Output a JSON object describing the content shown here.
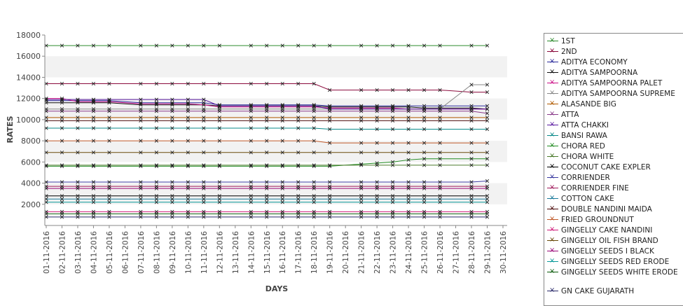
{
  "chart_data": {
    "type": "line",
    "xlabel": "DAYS",
    "ylabel": "RATES",
    "ylim": [
      0,
      18000
    ],
    "yticks": [
      2000,
      4000,
      6000,
      8000,
      10000,
      12000,
      14000,
      16000,
      18000
    ],
    "grid": "alternating horizontal bands",
    "legend_position": "right",
    "x": [
      "01-11-2016",
      "02-11-2016",
      "03-11-2016",
      "04-11-2016",
      "05-11-2016",
      "06-11-2016",
      "07-11-2016",
      "08-11-2016",
      "09-11-2016",
      "10-11-2016",
      "11-11-2016",
      "12-11-2016",
      "13-11-2016",
      "14-11-2016",
      "15-11-2016",
      "16-11-2016",
      "17-11-2016",
      "18-11-2016",
      "19-11-2016",
      "20-11-2016",
      "21-11-2016",
      "22-11-2016",
      "23-11-2016",
      "24-11-2016",
      "25-11-2016",
      "26-11-2016",
      "27-11-2016",
      "28-11-2016",
      "29-11-2016",
      "30-11-2016"
    ],
    "series": [
      {
        "name": "1ST",
        "color": "#2e8b2e",
        "values": [
          17000,
          17000,
          17000,
          17000,
          17000,
          null,
          17000,
          17000,
          17000,
          17000,
          17000,
          17000,
          null,
          17000,
          17000,
          17000,
          17000,
          17000,
          17000,
          null,
          17000,
          17000,
          17000,
          17000,
          17000,
          17000,
          null,
          17000,
          17000,
          null
        ]
      },
      {
        "name": "2ND",
        "color": "#8b0a3c",
        "values": [
          13400,
          13400,
          13400,
          13400,
          13400,
          null,
          13400,
          13400,
          13400,
          13400,
          13400,
          13400,
          null,
          13400,
          13400,
          13400,
          13400,
          13400,
          12800,
          null,
          12800,
          12800,
          12800,
          12800,
          12800,
          12800,
          null,
          12600,
          12600,
          null
        ]
      },
      {
        "name": "ADITYA ECONOMY",
        "color": "#2a2a9a",
        "values": [
          11800,
          11800,
          11800,
          11800,
          11800,
          null,
          11600,
          11600,
          11600,
          11600,
          11600,
          11400,
          null,
          11400,
          11400,
          11400,
          11400,
          11400,
          11300,
          null,
          11300,
          11300,
          11300,
          11300,
          11300,
          11300,
          null,
          11300,
          11300,
          null
        ]
      },
      {
        "name": "ADITYA SAMPOORNA",
        "color": "#111111",
        "values": [
          11600,
          11600,
          11600,
          11600,
          11600,
          null,
          11400,
          11400,
          11400,
          11400,
          11400,
          11300,
          null,
          11300,
          11300,
          11300,
          11300,
          11300,
          11200,
          null,
          11200,
          11200,
          11200,
          11200,
          11100,
          11100,
          null,
          11100,
          11000,
          null
        ]
      },
      {
        "name": "ADITYA SAMPOORNA PALET",
        "color": "#cc1188",
        "values": [
          12000,
          12000,
          11700,
          11700,
          11700,
          null,
          11500,
          11500,
          11500,
          11500,
          11400,
          11200,
          null,
          11200,
          11200,
          11200,
          11200,
          11200,
          11100,
          null,
          11100,
          11100,
          11100,
          11000,
          11000,
          11000,
          null,
          11000,
          11000,
          null
        ]
      },
      {
        "name": "ADITYA SAMPOORNA SUPREME",
        "color": "#888888",
        "values": [
          11000,
          11000,
          11000,
          11000,
          11000,
          null,
          11000,
          11000,
          11000,
          11000,
          11000,
          11000,
          null,
          11000,
          11000,
          11000,
          11000,
          11000,
          11000,
          null,
          11000,
          11000,
          11000,
          11000,
          11000,
          11000,
          null,
          13300,
          13300,
          null
        ]
      },
      {
        "name": "ALASANDE BIG",
        "color": "#b05a00",
        "values": [
          10200,
          10200,
          10200,
          10200,
          10200,
          null,
          10200,
          10200,
          10200,
          10200,
          10200,
          10200,
          null,
          10200,
          10200,
          10200,
          10200,
          10200,
          10200,
          null,
          10200,
          10200,
          10200,
          10200,
          10200,
          10200,
          null,
          10200,
          10200,
          null
        ]
      },
      {
        "name": "ATTA",
        "color": "#8a3a8a",
        "values": [
          10800,
          10800,
          10800,
          10800,
          10800,
          null,
          10800,
          10800,
          10800,
          10800,
          10800,
          10800,
          null,
          10800,
          10800,
          10800,
          10800,
          10800,
          10800,
          null,
          10800,
          10800,
          10800,
          10800,
          10800,
          10800,
          null,
          10800,
          10600,
          null
        ]
      },
      {
        "name": "ATTA CHAKKI",
        "color": "#5a1aa0",
        "values": [
          11900,
          11900,
          11900,
          11900,
          11900,
          null,
          11900,
          11900,
          11900,
          11900,
          11900,
          11300,
          null,
          11300,
          11300,
          11300,
          11300,
          11300,
          11000,
          null,
          11000,
          11000,
          11000,
          11000,
          11000,
          11000,
          null,
          11000,
          11000,
          null
        ]
      },
      {
        "name": "BANSI RAWA",
        "color": "#0a8a8a",
        "values": [
          9200,
          9200,
          9200,
          9200,
          9200,
          null,
          9200,
          9200,
          9200,
          9200,
          9200,
          9200,
          null,
          9200,
          9200,
          9200,
          9200,
          9200,
          9100,
          null,
          9100,
          9100,
          9100,
          9100,
          9100,
          9100,
          null,
          9100,
          9100,
          null
        ]
      },
      {
        "name": "CHORA RED",
        "color": "#228b22",
        "values": [
          5600,
          5600,
          5600,
          5600,
          5600,
          null,
          5600,
          5600,
          5600,
          5600,
          5600,
          5600,
          null,
          5600,
          5600,
          5600,
          5600,
          5600,
          5600,
          null,
          5800,
          5900,
          6000,
          6200,
          6300,
          6300,
          null,
          6300,
          6300,
          null
        ]
      },
      {
        "name": "CHORA WHITE",
        "color": "#4a7a2a",
        "values": [
          5700,
          5700,
          5700,
          5700,
          5700,
          null,
          5700,
          5700,
          5700,
          5700,
          5700,
          5700,
          null,
          5700,
          5700,
          5700,
          5700,
          5700,
          5700,
          null,
          5700,
          5700,
          5700,
          5700,
          5700,
          5700,
          null,
          5700,
          5700,
          null
        ]
      },
      {
        "name": "COCONUT CAKE EXPLER",
        "color": "#000000",
        "values": [
          2800,
          2800,
          2800,
          2800,
          2800,
          null,
          2800,
          2800,
          2800,
          2800,
          2800,
          2800,
          null,
          2800,
          2800,
          2800,
          2800,
          2800,
          2800,
          null,
          2800,
          2800,
          2800,
          2800,
          2800,
          2800,
          null,
          2800,
          2800,
          null
        ]
      },
      {
        "name": "CORRIENDER",
        "color": "#3a3aa0",
        "values": [
          4100,
          4100,
          4100,
          4100,
          4100,
          null,
          4100,
          4100,
          4100,
          4100,
          4100,
          4100,
          null,
          4100,
          4100,
          4100,
          4100,
          4100,
          4100,
          null,
          4100,
          4100,
          4100,
          4100,
          4100,
          4100,
          null,
          4100,
          4200,
          null
        ]
      },
      {
        "name": "CORRIENDER FINE",
        "color": "#a01a5a",
        "values": [
          3700,
          3700,
          3700,
          3700,
          3700,
          null,
          3700,
          3700,
          3700,
          3700,
          3700,
          3700,
          null,
          3700,
          3700,
          3700,
          3700,
          3700,
          3700,
          null,
          3700,
          3700,
          3700,
          3700,
          3700,
          3700,
          null,
          3700,
          3700,
          null
        ]
      },
      {
        "name": "COTTON CAKE",
        "color": "#1a7a9a",
        "values": [
          2500,
          2500,
          2500,
          2500,
          2500,
          null,
          2500,
          2500,
          2500,
          2500,
          2500,
          2500,
          null,
          2500,
          2500,
          2500,
          2500,
          2500,
          2500,
          null,
          2500,
          2500,
          2500,
          2500,
          2500,
          2500,
          null,
          2500,
          2500,
          null
        ]
      },
      {
        "name": "DOUBLE NANDINI MAIDA",
        "color": "#4a0a0a",
        "values": [
          9900,
          9900,
          9900,
          9900,
          9900,
          null,
          9900,
          9900,
          9900,
          9900,
          9900,
          9900,
          null,
          9900,
          9900,
          9900,
          9900,
          9900,
          9900,
          null,
          9900,
          9900,
          9900,
          9900,
          9900,
          9900,
          null,
          9900,
          9900,
          null
        ]
      },
      {
        "name": "FRIED GROUNDNUT",
        "color": "#c05a2a",
        "values": [
          8000,
          8000,
          8000,
          8000,
          8000,
          null,
          8000,
          8000,
          8000,
          8000,
          8000,
          8000,
          null,
          8000,
          8000,
          8000,
          8000,
          8000,
          7800,
          null,
          7800,
          7800,
          7800,
          7800,
          7800,
          7800,
          null,
          7800,
          7800,
          null
        ]
      },
      {
        "name": "GINGELLY CAKE NANDINI",
        "color": "#d01a7a",
        "values": [
          1300,
          1300,
          1300,
          1300,
          1300,
          null,
          1300,
          1300,
          1300,
          1300,
          1300,
          1300,
          null,
          1300,
          1300,
          1300,
          1300,
          1300,
          1300,
          null,
          1300,
          1300,
          1300,
          1300,
          1300,
          1300,
          null,
          1300,
          1300,
          null
        ]
      },
      {
        "name": "GINGELLY OIL FISH BRAND",
        "color": "#6a4a0a",
        "values": [
          6900,
          6900,
          6900,
          6900,
          6900,
          null,
          6900,
          6900,
          6900,
          6900,
          6900,
          6900,
          null,
          6900,
          6900,
          6900,
          6900,
          6900,
          6900,
          null,
          6900,
          6900,
          6900,
          6900,
          6900,
          6900,
          null,
          6900,
          6900,
          null
        ]
      },
      {
        "name": "GINGELLY SEEDS I BLACK",
        "color": "#9a0a7a",
        "values": [
          3500,
          3500,
          3500,
          3500,
          3500,
          null,
          3500,
          3500,
          3500,
          3500,
          3500,
          3500,
          null,
          3500,
          3500,
          3500,
          3500,
          3500,
          3500,
          null,
          3500,
          3500,
          3500,
          3500,
          3500,
          3500,
          null,
          3500,
          3500,
          null
        ]
      },
      {
        "name": "GINGELLY SEEDS RED ERODE",
        "color": "#0a9a9a",
        "values": [
          2200,
          2200,
          2200,
          2200,
          2200,
          null,
          2200,
          2200,
          2200,
          2200,
          2200,
          2200,
          null,
          2200,
          2200,
          2200,
          2200,
          2200,
          2200,
          null,
          2200,
          2200,
          2200,
          2200,
          2200,
          2200,
          null,
          2200,
          2200,
          null
        ]
      },
      {
        "name": "GINGELLY SEEDS WHITE ERODE",
        "color": "#0a5a0a",
        "values": [
          1100,
          1100,
          1100,
          1100,
          1100,
          null,
          1100,
          1100,
          1100,
          1100,
          1100,
          1100,
          null,
          1100,
          1100,
          1100,
          1100,
          1100,
          1100,
          null,
          1100,
          1100,
          1100,
          1100,
          1100,
          1100,
          null,
          1100,
          1100,
          null
        ]
      },
      {
        "name": "GN CAKE GUJARATH",
        "color": "#2a2a6a",
        "values": [
          800,
          800,
          800,
          800,
          800,
          null,
          800,
          800,
          800,
          800,
          800,
          800,
          null,
          800,
          800,
          800,
          800,
          800,
          800,
          null,
          800,
          800,
          800,
          800,
          800,
          800,
          null,
          800,
          800,
          null
        ]
      }
    ]
  }
}
